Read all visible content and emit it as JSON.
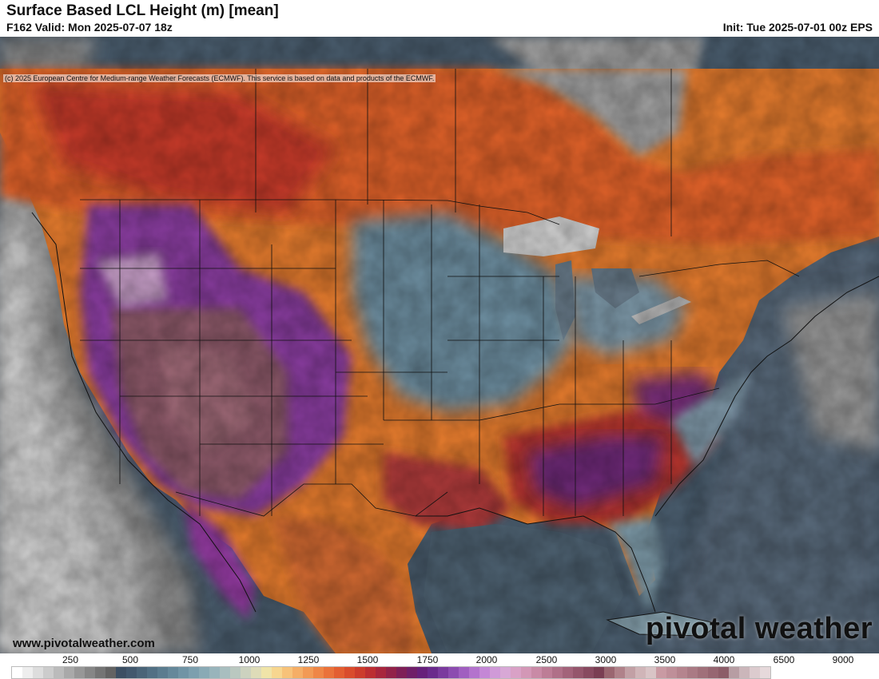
{
  "header": {
    "title": "Surface Based LCL Height (m) [mean]",
    "subtitle": "F162 Valid: Mon 2025-07-07 18z",
    "init": "Init: Tue 2025-07-01 00z EPS"
  },
  "map": {
    "copyright": "(c) 2025 European Centre for Medium-range Weather Forecasts (ECMWF). This service is based on data and products of the ECMWF.",
    "ocean_color": "#4a5f70",
    "land_color": "#e07a2b"
  },
  "footer": {
    "site_url": "www.pivotalweather.com",
    "logo_text": "pivotal weather"
  },
  "colorbar": {
    "labels": [
      "250",
      "500",
      "750",
      "1000",
      "1250",
      "1500",
      "1750",
      "2000",
      "2500",
      "3000",
      "3500",
      "4000",
      "6500",
      "9000"
    ],
    "colors": [
      "#ffffff",
      "#eeeeee",
      "#dddddd",
      "#cccccc",
      "#bbbbbb",
      "#a9a9a9",
      "#979797",
      "#868686",
      "#747474",
      "#636363",
      "#3c4f63",
      "#42586d",
      "#4a6478",
      "#527084",
      "#5b7c8f",
      "#65889a",
      "#7094a5",
      "#7c9fae",
      "#89aab5",
      "#98b4bb",
      "#a8bebf",
      "#bac8c0",
      "#ccd2bf",
      "#dedcb8",
      "#f0e4a8",
      "#f7d68f",
      "#f7c279",
      "#f5ae66",
      "#f29a55",
      "#ef8646",
      "#ea723a",
      "#e35e31",
      "#d94c2c",
      "#cc3c2c",
      "#bc2e32",
      "#a8263d",
      "#922249",
      "#7e1f57",
      "#6f1f68",
      "#66207a",
      "#6a2a8c",
      "#7a3a9e",
      "#8c4cb0",
      "#a05fc0",
      "#b373cd",
      "#c487d6",
      "#d09ad8",
      "#d8a8d6",
      "#d9a1c6",
      "#d397b6",
      "#c98aa6",
      "#bd7d96",
      "#b07088",
      "#a3637a",
      "#95566c",
      "#884a60",
      "#7a3e53",
      "#9a6670",
      "#b0828a",
      "#c2a0a5",
      "#d0b5b8",
      "#d9c4c6",
      "#c99aa3",
      "#bf8f99",
      "#b5848e",
      "#aa7a84",
      "#a0707a",
      "#966671",
      "#8c5d68",
      "#b79da3",
      "#cbb6ba",
      "#dccbce",
      "#e6d9db"
    ]
  }
}
